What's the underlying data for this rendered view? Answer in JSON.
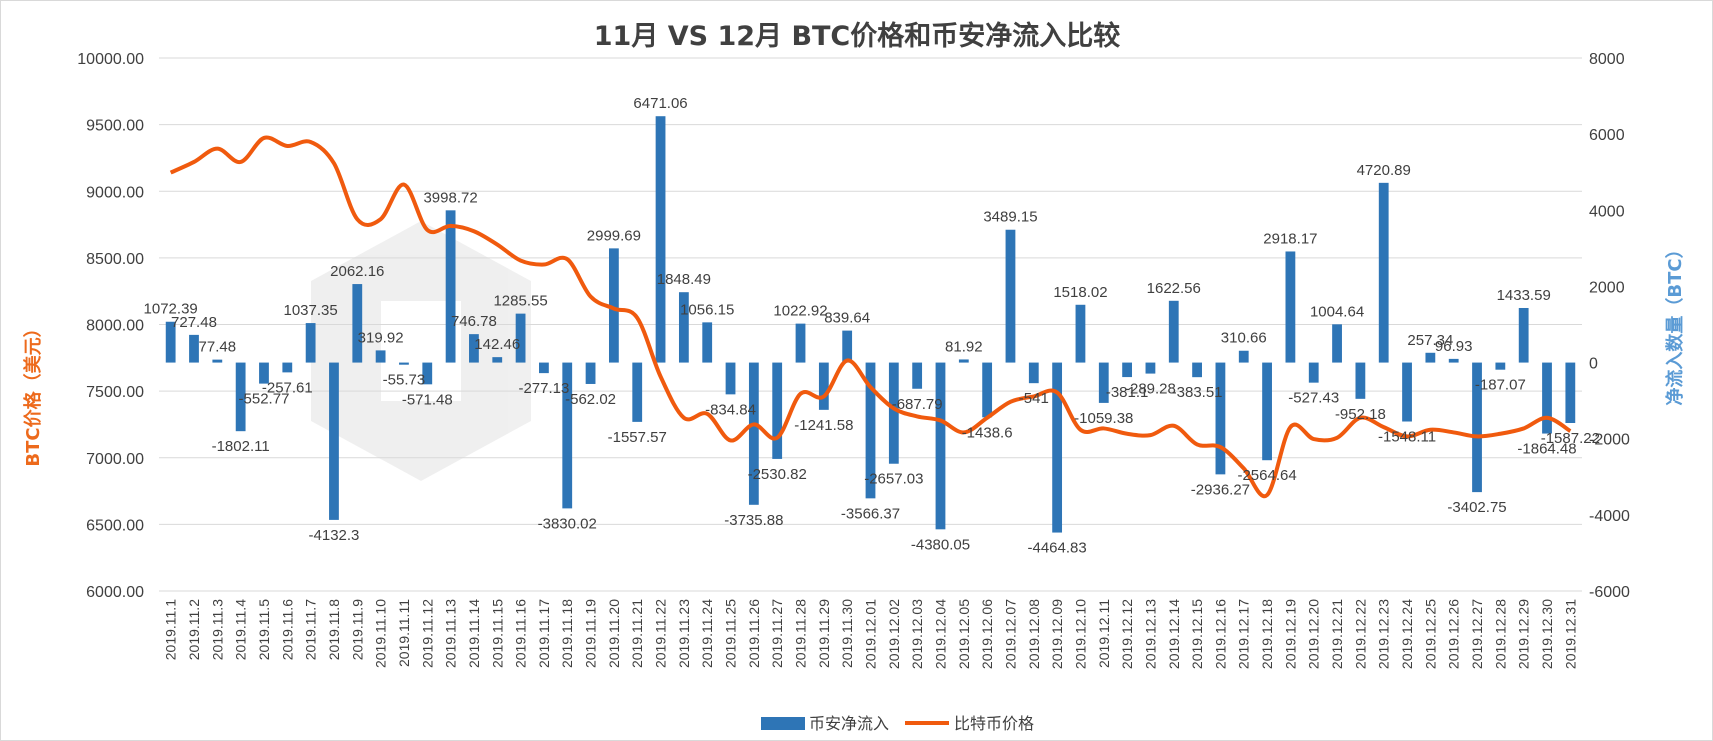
{
  "chart_data": {
    "type": "bar+line",
    "title": "11月 VS 12月 BTC价格和币安净流入比较",
    "ylabel_left": "BTC价格（美元）",
    "ylabel_right": "净流入数量（BTC）",
    "ylim_left": [
      6000,
      10000
    ],
    "yticks_left": [
      "10000.00",
      "9500.00",
      "9000.00",
      "8500.00",
      "8000.00",
      "7500.00",
      "7000.00",
      "6500.00",
      "6000.00"
    ],
    "ylim_right": [
      -6000,
      8000
    ],
    "yticks_right": [
      "8000",
      "6000",
      "4000",
      "2000",
      "0",
      "-2000",
      "-4000",
      "-6000"
    ],
    "grid": true,
    "legend_position": "bottom",
    "categories": [
      "2019.11.1",
      "2019.11.2",
      "2019.11.3",
      "2019.11.4",
      "2019.11.5",
      "2019.11.6",
      "2019.11.7",
      "2019.11.8",
      "2019.11.9",
      "2019.11.10",
      "2019.11.11",
      "2019.11.12",
      "2019.11.13",
      "2019.11.14",
      "2019.11.15",
      "2019.11.16",
      "2019.11.17",
      "2019.11.18",
      "2019.11.19",
      "2019.11.20",
      "2019.11.21",
      "2019.11.22",
      "2019.11.23",
      "2019.11.24",
      "2019.11.25",
      "2019.11.26",
      "2019.11.27",
      "2019.11.28",
      "2019.11.29",
      "2019.11.30",
      "2019.12.01",
      "2019.12.02",
      "2019.12.03",
      "2019.12.04",
      "2019.12.05",
      "2019.12.06",
      "2019.12.07",
      "2019.12.08",
      "2019.12.09",
      "2019.12.10",
      "2019.12.11",
      "2019.12.12",
      "2019.12.13",
      "2019.12.14",
      "2019.12.15",
      "2019.12.16",
      "2019.12.17",
      "2019.12.18",
      "2019.12.19",
      "2019.12.20",
      "2019.12.21",
      "2019.12.22",
      "2019.12.23",
      "2019.12.24",
      "2019.12.25",
      "2019.12.26",
      "2019.12.27",
      "2019.12.28",
      "2019.12.29",
      "2019.12.30",
      "2019.12.31"
    ],
    "series": [
      {
        "name": "币安净流入",
        "type": "bar",
        "axis": "right",
        "color": "#2e75b6",
        "values": [
          1072.39,
          727.48,
          77.48,
          -1802.11,
          -552.77,
          -257.61,
          1037.35,
          -4132.3,
          2062.16,
          319.92,
          -55.73,
          -571.48,
          3998.72,
          746.78,
          142.46,
          1285.55,
          -277.13,
          -3830.02,
          -562.02,
          2999.69,
          -1557.57,
          6471.06,
          1848.49,
          1056.15,
          -834.84,
          -3735.88,
          -2530.82,
          1022.92,
          -1241.58,
          839.64,
          -3566.37,
          -2657.03,
          -687.79,
          -4380.05,
          81.92,
          -1438.6,
          3489.15,
          -541,
          -4464.83,
          1518.02,
          -1059.38,
          -381.1,
          -289.28,
          1622.56,
          -383.51,
          -2936.27,
          310.66,
          -2564.64,
          2918.17,
          -527.43,
          1004.64,
          -952.18,
          4720.89,
          -1548.11,
          257.34,
          96.93,
          -3402.75,
          -187.07,
          1433.59,
          -1864.48,
          -1587.22
        ],
        "labels": [
          "1072.39",
          "727.48",
          "77.48",
          "-1802.11",
          "-552.77",
          "-257.61",
          "1037.35",
          "-4132.3",
          "2062.16",
          "319.92",
          "-55.73",
          "-571.48",
          "3998.72",
          "746.78",
          "142.46",
          "1285.55",
          "-277.13",
          "-3830.02",
          "-562.02",
          "2999.69",
          "-1557.57",
          "6471.06",
          "1848.49",
          "1056.15",
          "-834.84",
          "-3735.88",
          "-2530.82",
          "1022.92",
          "-1241.58",
          "839.64",
          "-3566.37",
          "-2657.03",
          "-687.79",
          "-4380.05",
          "81.92",
          "-1438.6",
          "3489.15",
          "-541",
          "-4464.83",
          "1518.02",
          "-1059.38",
          "-381.1",
          "-289.28",
          "1622.56",
          "-383.51",
          "-2936.27",
          "310.66",
          "-2564.64",
          "2918.17",
          "-527.43",
          "1004.64",
          "-952.18",
          "4720.89",
          "-1548.11",
          "257.34",
          "96.93",
          "-3402.75",
          "-187.07",
          "1433.59",
          "-1864.48",
          "-1587.22"
        ]
      },
      {
        "name": "比特币价格",
        "type": "line",
        "axis": "left",
        "color": "#f05a0e",
        "values": [
          9140,
          9220,
          9320,
          9220,
          9400,
          9340,
          9370,
          9210,
          8790,
          8790,
          9050,
          8710,
          8740,
          8700,
          8600,
          8480,
          8450,
          8490,
          8210,
          8120,
          8050,
          7610,
          7300,
          7330,
          7130,
          7250,
          7150,
          7480,
          7460,
          7730,
          7530,
          7370,
          7310,
          7280,
          7190,
          7300,
          7420,
          7460,
          7490,
          7210,
          7220,
          7180,
          7170,
          7240,
          7100,
          7080,
          6920,
          6720,
          7230,
          7140,
          7150,
          7300,
          7230,
          7160,
          7210,
          7190,
          7160,
          7180,
          7220,
          7300,
          7200
        ]
      }
    ]
  },
  "legend": {
    "bar_label": "币安净流入",
    "line_label": "比特币价格"
  }
}
